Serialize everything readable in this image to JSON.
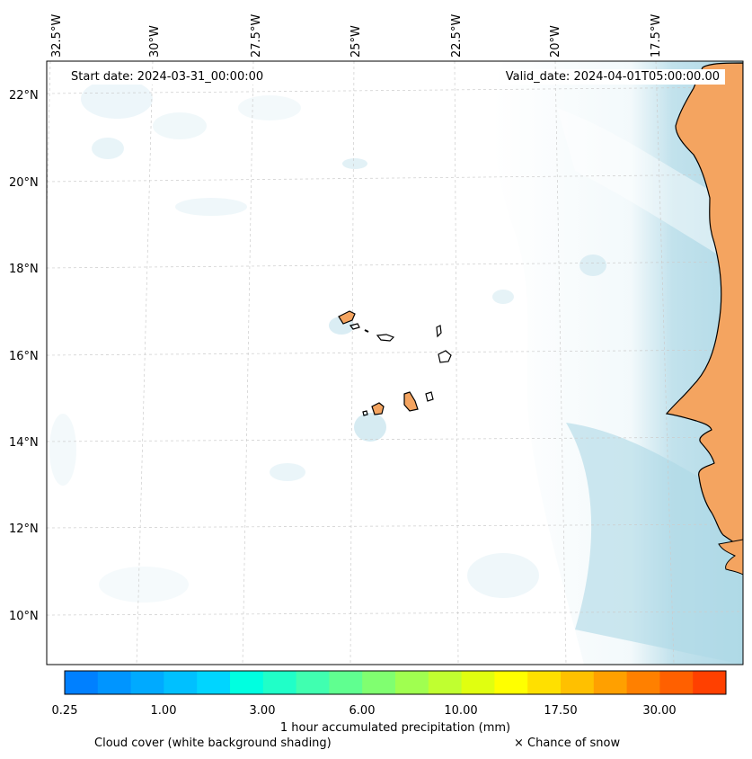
{
  "header": {
    "start_date": "Start date: 2024-03-31_00:00:00",
    "valid_date": "Valid_date: 2024-04-01T05:00:00.00"
  },
  "map": {
    "lon_labels": [
      "32.5°W",
      "30°W",
      "27.5°W",
      "25°W",
      "22.5°W",
      "20°W",
      "17.5°W"
    ],
    "lat_labels": [
      "22°N",
      "20°N",
      "18°N",
      "16°N",
      "14°N",
      "12°N",
      "10°N"
    ],
    "colors": {
      "land": "#f4a460",
      "cloud": "#add8e6",
      "coast": "#000000",
      "grid": "#cccccc"
    }
  },
  "colorbar": {
    "colors": [
      "#0080ff",
      "#0095ff",
      "#00aaff",
      "#00c0ff",
      "#00d5ff",
      "#00ffe0",
      "#20ffc8",
      "#40ffb0",
      "#60ff90",
      "#80ff70",
      "#a0ff50",
      "#c0ff30",
      "#e0ff10",
      "#ffff00",
      "#ffe000",
      "#ffc000",
      "#ffa000",
      "#ff8000",
      "#ff6000",
      "#ff4000"
    ],
    "tick_labels": [
      "0.25",
      "1.00",
      "3.00",
      "6.00",
      "10.00",
      "17.50",
      "30.00"
    ],
    "label": "1 hour accumulated precipitation (mm)"
  },
  "footer": {
    "cloud_cover": "Cloud cover (white background shading)",
    "snow": "× Chance of snow"
  }
}
